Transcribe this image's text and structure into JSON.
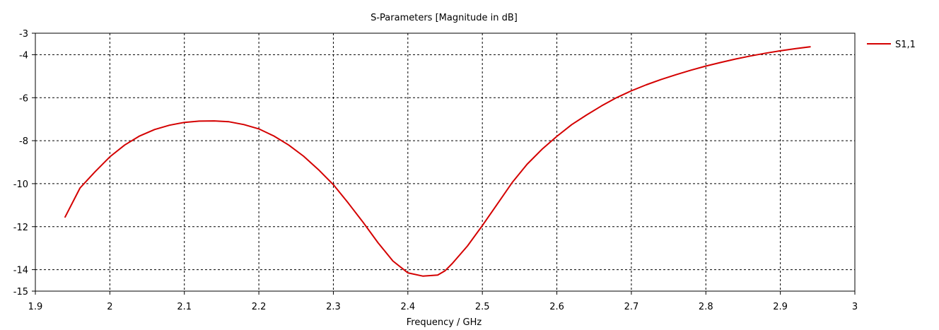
{
  "chart_data": {
    "type": "line",
    "title": "S-Parameters [Magnitude in dB]",
    "xlabel": "Frequency / GHz",
    "ylabel": "",
    "xlim": [
      1.9,
      3.0
    ],
    "ylim": [
      -15,
      -3
    ],
    "x_ticks": [
      "1.9",
      "2",
      "2.1",
      "2.2",
      "2.3",
      "2.4",
      "2.5",
      "2.6",
      "2.7",
      "2.8",
      "2.9",
      "3"
    ],
    "y_ticks": [
      "-3",
      "-4",
      "-6",
      "-8",
      "-10",
      "-12",
      "-14",
      "-15"
    ],
    "grid": true,
    "legend_position": "right",
    "colors": {
      "line": "#d40000",
      "grid": "#000000",
      "axis": "#000000"
    },
    "series": [
      {
        "name": "S1,1",
        "x": [
          1.94,
          1.96,
          1.98,
          2.0,
          2.02,
          2.04,
          2.06,
          2.08,
          2.1,
          2.12,
          2.14,
          2.16,
          2.18,
          2.2,
          2.22,
          2.24,
          2.26,
          2.28,
          2.3,
          2.32,
          2.34,
          2.36,
          2.38,
          2.4,
          2.42,
          2.44,
          2.45,
          2.46,
          2.48,
          2.5,
          2.52,
          2.54,
          2.56,
          2.58,
          2.6,
          2.62,
          2.64,
          2.66,
          2.68,
          2.7,
          2.72,
          2.74,
          2.76,
          2.78,
          2.8,
          2.82,
          2.84,
          2.86,
          2.88,
          2.9,
          2.92,
          2.94
        ],
        "values": [
          -11.55,
          -10.2,
          -9.45,
          -8.75,
          -8.2,
          -7.78,
          -7.48,
          -7.28,
          -7.15,
          -7.09,
          -7.08,
          -7.12,
          -7.25,
          -7.45,
          -7.78,
          -8.2,
          -8.72,
          -9.35,
          -10.05,
          -10.9,
          -11.8,
          -12.75,
          -13.6,
          -14.15,
          -14.3,
          -14.25,
          -14.05,
          -13.7,
          -12.9,
          -11.95,
          -10.95,
          -9.95,
          -9.1,
          -8.4,
          -7.8,
          -7.25,
          -6.8,
          -6.38,
          -6.0,
          -5.68,
          -5.4,
          -5.15,
          -4.93,
          -4.72,
          -4.53,
          -4.36,
          -4.2,
          -4.06,
          -3.93,
          -3.82,
          -3.72,
          -3.63
        ]
      }
    ]
  }
}
